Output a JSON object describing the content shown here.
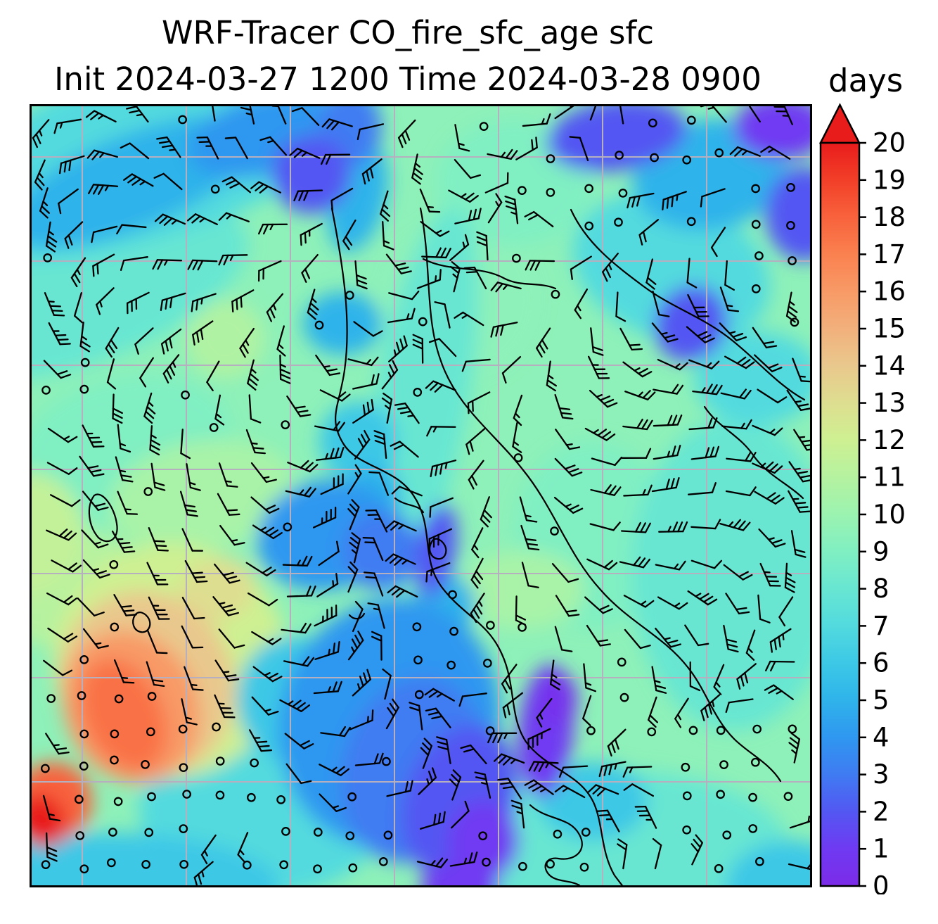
{
  "header": {
    "title": "WRF-Tracer CO_fire_sfc_age sfc",
    "subtitle": "Init 2024-03-27 1200 Time 2024-03-28 0900",
    "colorbar_unit": "days"
  },
  "chart_data": {
    "type": "heatmap",
    "title": "WRF-Tracer CO_fire_sfc_age sfc",
    "model": "WRF-Tracer",
    "variable": "CO_fire_sfc_age",
    "level": "sfc",
    "init_time": "2024-03-27 1200",
    "valid_time": "2024-03-28 0900",
    "units": "days",
    "base_value": 9.5,
    "colorbar": {
      "min": 0,
      "max": 20,
      "ticks": [
        0,
        1,
        2,
        3,
        4,
        5,
        6,
        7,
        8,
        9,
        10,
        11,
        12,
        13,
        14,
        15,
        16,
        17,
        18,
        19,
        20
      ],
      "over_arrow": true,
      "stops": [
        {
          "v": 0,
          "c": "#7c2be8"
        },
        {
          "v": 1,
          "c": "#6f3af2"
        },
        {
          "v": 2,
          "c": "#5357f2"
        },
        {
          "v": 3,
          "c": "#3f7bf2"
        },
        {
          "v": 4,
          "c": "#2f97f0"
        },
        {
          "v": 5,
          "c": "#2fb3ea"
        },
        {
          "v": 6,
          "c": "#3cc8e6"
        },
        {
          "v": 7,
          "c": "#52dade"
        },
        {
          "v": 8,
          "c": "#68e6d2"
        },
        {
          "v": 9,
          "c": "#80efc2"
        },
        {
          "v": 10,
          "c": "#9bf3b0"
        },
        {
          "v": 11,
          "c": "#b5f2a0"
        },
        {
          "v": 12,
          "c": "#cef092"
        },
        {
          "v": 13,
          "c": "#dede90"
        },
        {
          "v": 14,
          "c": "#e9c88d"
        },
        {
          "v": 15,
          "c": "#f2b07c"
        },
        {
          "v": 16,
          "c": "#f89a66"
        },
        {
          "v": 17,
          "c": "#fa8150"
        },
        {
          "v": 18,
          "c": "#f8623c"
        },
        {
          "v": 19,
          "c": "#f23f28"
        },
        {
          "v": 20,
          "c": "#e91c1c"
        }
      ]
    },
    "overlays": {
      "wind_barbs": "black wind barbs; open circles at calm stations",
      "gridlines": "gray lat/lon grid lines",
      "coastlines": "black coastline and border outlines (Italy / central Mediterranean domain)"
    },
    "field_regions": [
      {
        "x": 0.16,
        "y": 0.06,
        "rx": 0.3,
        "ry": 0.11,
        "v": 7,
        "rot": -18
      },
      {
        "x": 0.07,
        "y": 0.24,
        "rx": 0.22,
        "ry": 0.09,
        "v": 8,
        "rot": -20
      },
      {
        "x": 0.13,
        "y": 0.1,
        "rx": 0.17,
        "ry": 0.06,
        "v": 5,
        "rot": -22
      },
      {
        "x": 0.3,
        "y": 0.04,
        "rx": 0.1,
        "ry": 0.05,
        "v": 4,
        "rot": -15
      },
      {
        "x": 0.36,
        "y": 0.09,
        "rx": 0.05,
        "ry": 0.05,
        "v": 2,
        "rot": 0
      },
      {
        "x": 0.41,
        "y": 0.03,
        "rx": 0.04,
        "ry": 0.05,
        "v": 3,
        "rot": 0
      },
      {
        "x": 0.42,
        "y": 0.12,
        "rx": 0.035,
        "ry": 0.07,
        "v": 5,
        "rot": 15
      },
      {
        "x": 0.75,
        "y": 0.04,
        "rx": 0.09,
        "ry": 0.045,
        "v": 2,
        "rot": -8
      },
      {
        "x": 0.96,
        "y": 0.03,
        "rx": 0.06,
        "ry": 0.04,
        "v": 1,
        "rot": 0
      },
      {
        "x": 0.87,
        "y": 0.09,
        "rx": 0.1,
        "ry": 0.07,
        "v": 5,
        "rot": -10
      },
      {
        "x": 0.99,
        "y": 0.14,
        "rx": 0.05,
        "ry": 0.06,
        "v": 2,
        "rot": 0
      },
      {
        "x": 0.82,
        "y": 0.21,
        "rx": 0.13,
        "ry": 0.09,
        "v": 7,
        "rot": 20
      },
      {
        "x": 0.845,
        "y": 0.28,
        "rx": 0.045,
        "ry": 0.05,
        "v": 2,
        "rot": 35
      },
      {
        "x": 0.62,
        "y": 0.1,
        "rx": 0.1,
        "ry": 0.08,
        "v": 9,
        "rot": 0
      },
      {
        "x": 0.4,
        "y": 0.28,
        "rx": 0.05,
        "ry": 0.04,
        "v": 5,
        "rot": 0
      },
      {
        "x": 0.5,
        "y": 0.38,
        "rx": 0.06,
        "ry": 0.25,
        "v": 8,
        "rot": 10
      },
      {
        "x": 0.42,
        "y": 0.43,
        "rx": 0.05,
        "ry": 0.05,
        "v": 6,
        "rot": 0
      },
      {
        "x": 0.38,
        "y": 0.55,
        "rx": 0.09,
        "ry": 0.07,
        "v": 4,
        "rot": -10
      },
      {
        "x": 0.45,
        "y": 0.57,
        "rx": 0.05,
        "ry": 0.05,
        "v": 3,
        "rot": 0
      },
      {
        "x": 0.52,
        "y": 0.57,
        "rx": 0.025,
        "ry": 0.06,
        "v": 2,
        "rot": 10
      },
      {
        "x": 0.46,
        "y": 0.79,
        "rx": 0.14,
        "ry": 0.16,
        "v": 4,
        "rot": 15
      },
      {
        "x": 0.49,
        "y": 0.85,
        "rx": 0.09,
        "ry": 0.12,
        "v": 3,
        "rot": 15
      },
      {
        "x": 0.55,
        "y": 0.89,
        "rx": 0.07,
        "ry": 0.1,
        "v": 2,
        "rot": 20
      },
      {
        "x": 0.58,
        "y": 0.94,
        "rx": 0.045,
        "ry": 0.05,
        "v": 1,
        "rot": 0
      },
      {
        "x": 0.66,
        "y": 0.8,
        "rx": 0.035,
        "ry": 0.085,
        "v": 1,
        "rot": 5
      },
      {
        "x": 0.675,
        "y": 0.76,
        "rx": 0.025,
        "ry": 0.035,
        "v": 0.5,
        "rot": 0
      },
      {
        "x": 0.55,
        "y": 1.0,
        "rx": 0.05,
        "ry": 0.035,
        "v": 1,
        "rot": 0
      },
      {
        "x": 0.335,
        "y": 0.76,
        "rx": 0.07,
        "ry": 0.08,
        "v": 6,
        "rot": 0
      },
      {
        "x": 0.3,
        "y": 0.9,
        "rx": 0.16,
        "ry": 0.11,
        "v": 7,
        "rot": 0
      },
      {
        "x": 0.1,
        "y": 1.0,
        "rx": 0.22,
        "ry": 0.07,
        "v": 6,
        "rot": 0
      },
      {
        "x": 0.18,
        "y": 0.71,
        "rx": 0.15,
        "ry": 0.15,
        "v": 12,
        "rot": -25
      },
      {
        "x": 0.15,
        "y": 0.74,
        "rx": 0.11,
        "ry": 0.12,
        "v": 14,
        "rot": -25
      },
      {
        "x": 0.13,
        "y": 0.77,
        "rx": 0.085,
        "ry": 0.1,
        "v": 16,
        "rot": -25
      },
      {
        "x": 0.12,
        "y": 0.78,
        "rx": 0.05,
        "ry": 0.075,
        "v": 17.5,
        "rot": -25
      },
      {
        "x": 0.03,
        "y": 0.89,
        "rx": 0.05,
        "ry": 0.05,
        "v": 18,
        "rot": -30
      },
      {
        "x": 0.015,
        "y": 0.915,
        "rx": 0.03,
        "ry": 0.035,
        "v": 20,
        "rot": -30
      },
      {
        "x": 0.05,
        "y": 0.62,
        "rx": 0.1,
        "ry": 0.07,
        "v": 11,
        "rot": -15
      },
      {
        "x": 0.0,
        "y": 0.55,
        "rx": 0.07,
        "ry": 0.08,
        "v": 11.5,
        "rot": 0
      },
      {
        "x": 0.24,
        "y": 0.62,
        "rx": 0.05,
        "ry": 0.04,
        "v": 13,
        "rot": -20
      },
      {
        "x": 0.9,
        "y": 0.6,
        "rx": 0.13,
        "ry": 0.2,
        "v": 8,
        "rot": 0
      },
      {
        "x": 0.75,
        "y": 0.95,
        "rx": 0.22,
        "ry": 0.1,
        "v": 8,
        "rot": 0
      },
      {
        "x": 0.72,
        "y": 0.89,
        "rx": 0.07,
        "ry": 0.05,
        "v": 6,
        "rot": 0
      },
      {
        "x": 0.97,
        "y": 1.0,
        "rx": 0.08,
        "ry": 0.06,
        "v": 6,
        "rot": 0
      },
      {
        "x": 0.63,
        "y": 0.62,
        "rx": 0.08,
        "ry": 0.05,
        "v": 10.5,
        "rot": 0
      },
      {
        "x": 0.22,
        "y": 0.5,
        "rx": 0.12,
        "ry": 0.07,
        "v": 10.5,
        "rot": -10
      },
      {
        "x": 0.12,
        "y": 0.44,
        "rx": 0.14,
        "ry": 0.09,
        "v": 9,
        "rot": -15
      },
      {
        "x": 0.55,
        "y": 0.25,
        "rx": 0.1,
        "ry": 0.1,
        "v": 9.5,
        "rot": 0
      },
      {
        "x": 0.72,
        "y": 0.55,
        "rx": 0.1,
        "ry": 0.12,
        "v": 9,
        "rot": 0
      },
      {
        "x": 0.53,
        "y": 0.64,
        "rx": 0.04,
        "ry": 0.04,
        "v": 5,
        "rot": 0
      },
      {
        "x": 0.44,
        "y": 0.5,
        "rx": 0.035,
        "ry": 0.04,
        "v": 5,
        "rot": 0
      },
      {
        "x": 0.93,
        "y": 0.35,
        "rx": 0.08,
        "ry": 0.06,
        "v": 7,
        "rot": 0
      },
      {
        "x": 0.25,
        "y": 0.3,
        "rx": 0.05,
        "ry": 0.05,
        "v": 10.8,
        "rot": 0
      }
    ],
    "calm_zones": [
      {
        "x": 0.12,
        "y": 0.86,
        "rx": 0.15,
        "ry": 0.13
      },
      {
        "x": 0.32,
        "y": 0.95,
        "rx": 0.18,
        "ry": 0.07
      },
      {
        "x": 0.07,
        "y": 0.95,
        "rx": 0.09,
        "ry": 0.06
      },
      {
        "x": 0.25,
        "y": 0.88,
        "rx": 0.1,
        "ry": 0.06
      },
      {
        "x": 0.55,
        "y": 0.675,
        "rx": 0.085,
        "ry": 0.05
      },
      {
        "x": 0.93,
        "y": 0.88,
        "rx": 0.1,
        "ry": 0.13
      },
      {
        "x": 0.7,
        "y": 0.11,
        "rx": 0.075,
        "ry": 0.06
      },
      {
        "x": 0.82,
        "y": 0.06,
        "rx": 0.08,
        "ry": 0.05
      },
      {
        "x": 0.645,
        "y": 0.95,
        "rx": 0.075,
        "ry": 0.05
      },
      {
        "x": 0.955,
        "y": 0.15,
        "rx": 0.055,
        "ry": 0.06
      },
      {
        "x": 0.855,
        "y": 0.8,
        "rx": 0.045,
        "ry": 0.04
      },
      {
        "x": 0.61,
        "y": 0.67,
        "rx": 0.05,
        "ry": 0.04
      },
      {
        "x": 0.065,
        "y": 0.335,
        "rx": 0.025,
        "ry": 0.03
      }
    ]
  }
}
